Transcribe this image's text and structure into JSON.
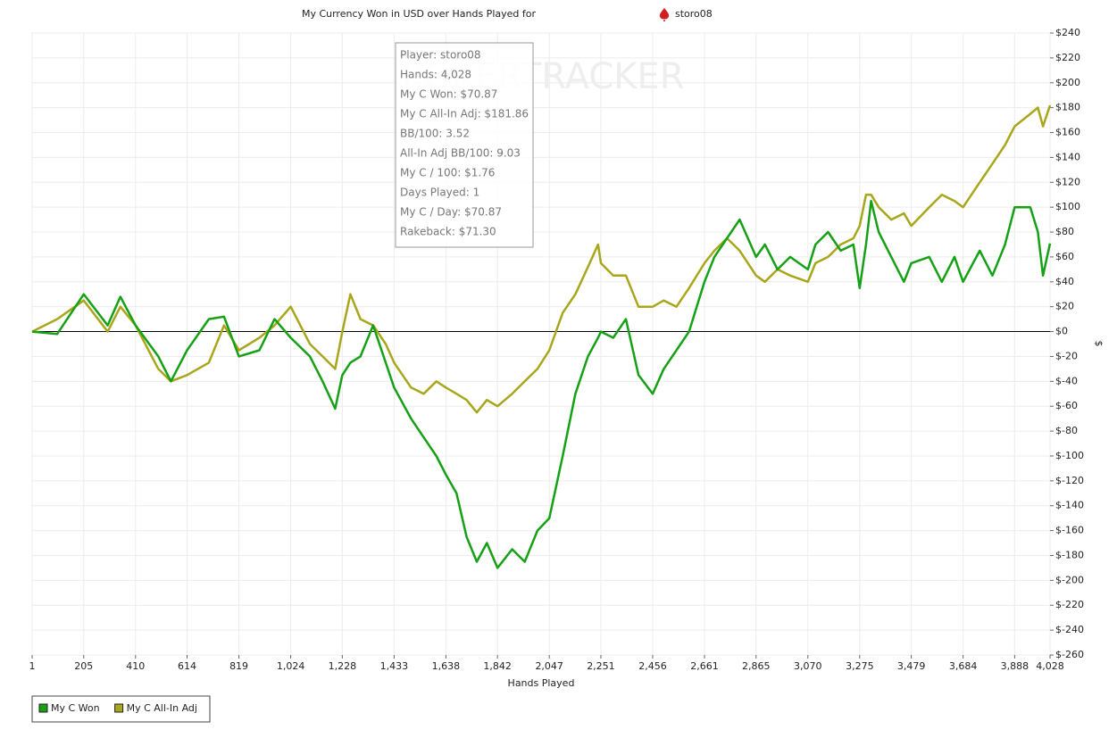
{
  "chart_data": {
    "type": "line",
    "title": "My Currency Won in USD over Hands Played for",
    "player": "storo08",
    "watermark": "POKERTRACKER",
    "x_label": "Hands Played",
    "y_label": "$",
    "xlim": [
      1,
      4028
    ],
    "ylim": [
      -260,
      240
    ],
    "xticks": [
      1,
      205,
      410,
      614,
      819,
      {
        "value": 1024,
        "label": "1,024"
      },
      {
        "value": 1228,
        "label": "1,228"
      },
      {
        "value": 1433,
        "label": "1,433"
      },
      {
        "value": 1638,
        "label": "1,638"
      },
      {
        "value": 1842,
        "label": "1,842"
      },
      {
        "value": 2047,
        "label": "2,047"
      },
      {
        "value": 2251,
        "label": "2,251"
      },
      {
        "value": 2456,
        "label": "2,456"
      },
      {
        "value": 2661,
        "label": "2,661"
      },
      {
        "value": 2865,
        "label": "2,865"
      },
      {
        "value": 3070,
        "label": "3,070"
      },
      {
        "value": 3275,
        "label": "3,275"
      },
      {
        "value": 3479,
        "label": "3,479"
      },
      {
        "value": 3684,
        "label": "3,684"
      },
      {
        "value": 3888,
        "label": "3,888"
      },
      {
        "value": 4028,
        "label": "4,028"
      }
    ],
    "yticks": [
      {
        "value": 240,
        "label": "$240"
      },
      {
        "value": 220,
        "label": "$220"
      },
      {
        "value": 200,
        "label": "$200"
      },
      {
        "value": 180,
        "label": "$180"
      },
      {
        "value": 160,
        "label": "$160"
      },
      {
        "value": 140,
        "label": "$140"
      },
      {
        "value": 120,
        "label": "$120"
      },
      {
        "value": 100,
        "label": "$100"
      },
      {
        "value": 80,
        "label": "$80"
      },
      {
        "value": 60,
        "label": "$60"
      },
      {
        "value": 40,
        "label": "$40"
      },
      {
        "value": 20,
        "label": "$20"
      },
      {
        "value": 0,
        "label": "$0"
      },
      {
        "value": -20,
        "label": "$-20"
      },
      {
        "value": -40,
        "label": "$-40"
      },
      {
        "value": -60,
        "label": "$-60"
      },
      {
        "value": -80,
        "label": "$-80"
      },
      {
        "value": -100,
        "label": "$-100"
      },
      {
        "value": -120,
        "label": "$-120"
      },
      {
        "value": -140,
        "label": "$-140"
      },
      {
        "value": -160,
        "label": "$-160"
      },
      {
        "value": -180,
        "label": "$-180"
      },
      {
        "value": -200,
        "label": "$-200"
      },
      {
        "value": -220,
        "label": "$-220"
      },
      {
        "value": -240,
        "label": "$-240"
      },
      {
        "value": -260,
        "label": "$-260"
      }
    ],
    "grid": true,
    "x": [
      1,
      100,
      205,
      300,
      350,
      410,
      500,
      550,
      614,
      700,
      760,
      819,
      900,
      960,
      1024,
      1100,
      1150,
      1200,
      1228,
      1260,
      1300,
      1350,
      1400,
      1433,
      1500,
      1550,
      1600,
      1638,
      1680,
      1720,
      1760,
      1800,
      1842,
      1900,
      1950,
      2000,
      2047,
      2100,
      2150,
      2200,
      2240,
      2251,
      2300,
      2350,
      2400,
      2456,
      2500,
      2550,
      2600,
      2661,
      2700,
      2750,
      2800,
      2865,
      2900,
      2950,
      3000,
      3070,
      3100,
      3150,
      3200,
      3250,
      3275,
      3300,
      3320,
      3350,
      3400,
      3450,
      3479,
      3550,
      3600,
      3650,
      3684,
      3750,
      3800,
      3850,
      3888,
      3950,
      3980,
      4000,
      4028
    ],
    "series": [
      {
        "name": "My C Won",
        "color": "#16a016",
        "values": [
          0,
          -2,
          30,
          5,
          28,
          5,
          -20,
          -40,
          -15,
          10,
          12,
          -20,
          -15,
          10,
          -5,
          -20,
          -40,
          -62,
          -35,
          -25,
          -20,
          5,
          -25,
          -45,
          -70,
          -85,
          -100,
          -115,
          -130,
          -165,
          -185,
          -170,
          -190,
          -175,
          -185,
          -160,
          -150,
          -100,
          -50,
          -20,
          -5,
          0,
          -5,
          10,
          -35,
          -50,
          -30,
          -15,
          0,
          40,
          60,
          75,
          90,
          60,
          70,
          50,
          60,
          50,
          70,
          80,
          65,
          70,
          35,
          70,
          105,
          80,
          60,
          40,
          55,
          60,
          40,
          60,
          40,
          65,
          45,
          70,
          100,
          100,
          80,
          45,
          70.87
        ]
      },
      {
        "name": "My C All-In Adj",
        "color": "#a8a61a",
        "values": [
          0,
          10,
          25,
          0,
          20,
          5,
          -30,
          -40,
          -35,
          -25,
          5,
          -15,
          -5,
          5,
          20,
          -10,
          -20,
          -30,
          0,
          30,
          10,
          5,
          -10,
          -25,
          -45,
          -50,
          -40,
          -45,
          -50,
          -55,
          -65,
          -55,
          -60,
          -50,
          -40,
          -30,
          -15,
          15,
          30,
          52,
          70,
          55,
          45,
          45,
          20,
          20,
          25,
          20,
          35,
          55,
          65,
          75,
          65,
          45,
          40,
          50,
          45,
          40,
          55,
          60,
          70,
          75,
          85,
          110,
          110,
          100,
          90,
          95,
          85,
          100,
          110,
          105,
          100,
          120,
          135,
          150,
          165,
          175,
          180,
          165,
          181.86
        ]
      }
    ],
    "legend": "bottom-left",
    "tooltip": [
      "Player: storo08",
      "Hands: 4,028",
      "My C Won: $70.87",
      "My C All-In Adj: $181.86",
      "BB/100: 3.52",
      "All-In Adj BB/100: 9.03",
      "My C / 100: $1.76",
      "Days Played: 1",
      "My C / Day: $70.87",
      "Rakeback: $71.30"
    ]
  }
}
